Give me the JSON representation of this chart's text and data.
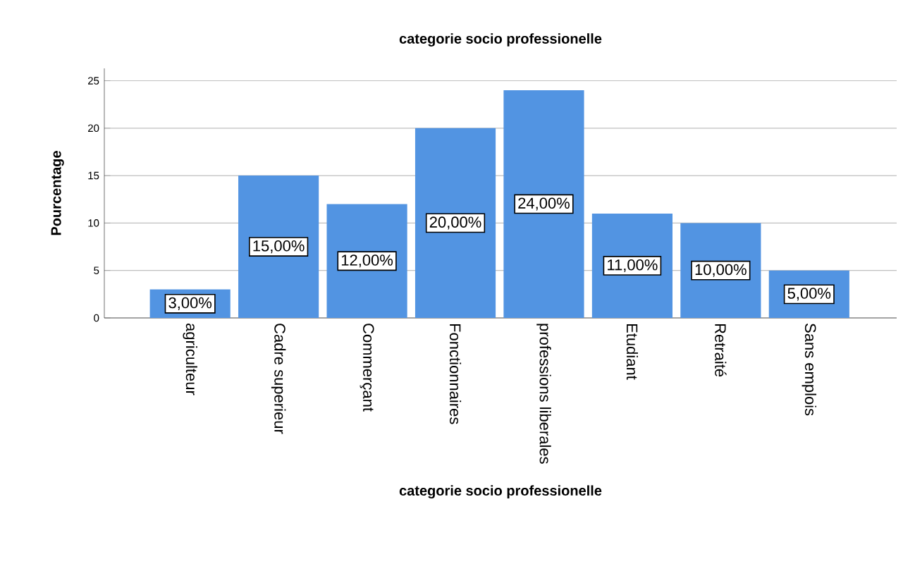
{
  "chart_data": {
    "type": "bar",
    "title": "categorie socio professionelle",
    "xlabel": "categorie socio professionelle",
    "ylabel": "Pourcentage",
    "categories": [
      "agriculteur",
      "Cadre superieur",
      "Commerçant",
      "Fonctionnaires",
      "professions liberales",
      "Etudiant",
      "Retraité",
      "Sans emplois"
    ],
    "values": [
      3,
      15,
      12,
      20,
      24,
      11,
      10,
      5
    ],
    "value_labels": [
      "3,00%",
      "15,00%",
      "12,00%",
      "20,00%",
      "24,00%",
      "11,00%",
      "10,00%",
      "5,00%"
    ],
    "color": "#5294e2",
    "ylim": [
      0,
      26.3
    ],
    "yticks": [
      0,
      5,
      10,
      15,
      20,
      25
    ],
    "grid": "y"
  }
}
